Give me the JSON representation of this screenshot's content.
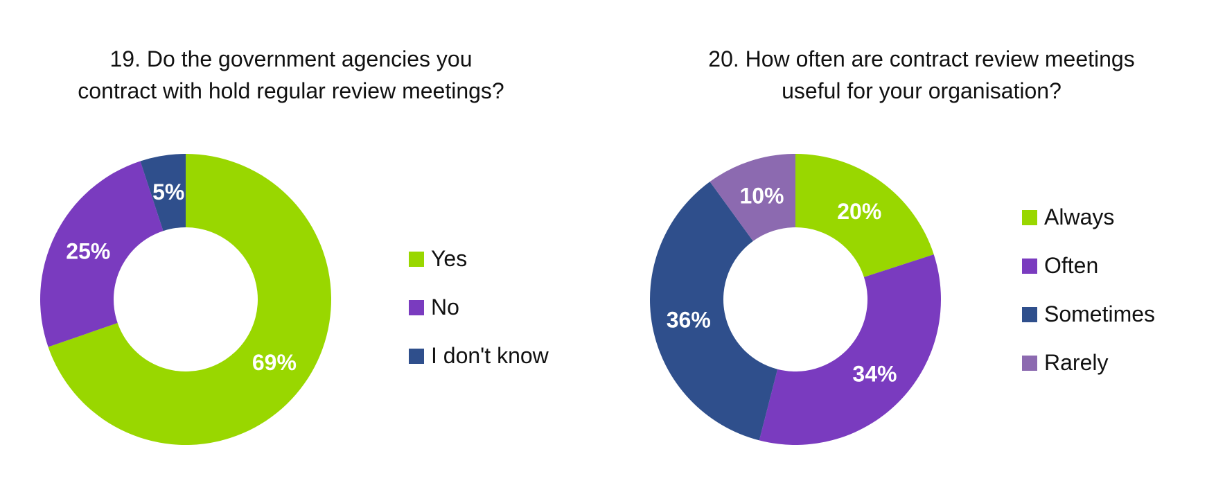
{
  "chart_data": [
    {
      "type": "pie",
      "title": "19. Do the government agencies you contract with hold regular review meetings?",
      "categories": [
        "Yes",
        "No",
        "I don't know"
      ],
      "values": [
        69,
        25,
        5
      ],
      "labels": [
        "69%",
        "25%",
        "5%"
      ],
      "colors": [
        "#99d700",
        "#7a3bbf",
        "#2f4f8c"
      ],
      "legend_position": "right"
    },
    {
      "type": "pie",
      "title": "20. How often are contract review meetings useful for your organisation?",
      "categories": [
        "Always",
        "Often",
        "Sometimes",
        "Rarely"
      ],
      "values": [
        20,
        34,
        36,
        10
      ],
      "labels": [
        "20%",
        "34%",
        "36%",
        "10%"
      ],
      "colors": [
        "#99d700",
        "#7a3bbf",
        "#2f4f8c",
        "#8c6ab0"
      ],
      "legend_position": "right"
    }
  ]
}
